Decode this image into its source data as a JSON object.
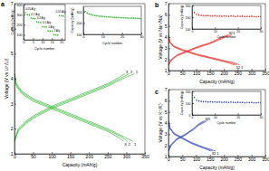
{
  "chart_data": [
    {
      "type": "line",
      "title": "a",
      "xlabel": "Capacity (mAh/g)",
      "ylabel": "Voltage (V vs Li⁺/Li)",
      "xlim": [
        0,
        350
      ],
      "xticks": [
        0,
        50,
        100,
        150,
        200,
        250,
        300,
        350
      ],
      "ylim": [
        1,
        7
      ],
      "yticks": [
        1,
        2,
        3,
        4,
        5,
        6,
        7
      ],
      "series": [
        {
          "name": "1",
          "color": "#3cb83c",
          "x": [
            0,
            5,
            20,
            50,
            100,
            150,
            200,
            250,
            290,
            318
          ],
          "values": [
            4.2,
            3.8,
            3.5,
            3.2,
            2.9,
            2.6,
            2.3,
            2.0,
            1.7,
            1.5
          ]
        },
        {
          "name": "2",
          "color": "#3cb83c",
          "x": [
            0,
            5,
            20,
            50,
            100,
            150,
            200,
            250,
            285,
            303
          ],
          "values": [
            4.2,
            3.75,
            3.45,
            3.15,
            2.85,
            2.55,
            2.25,
            1.95,
            1.7,
            1.5
          ]
        },
        {
          "name": "3",
          "color": "#3cb83c",
          "x": [
            0,
            5,
            20,
            50,
            100,
            150,
            200,
            250,
            280,
            292
          ],
          "values": [
            4.2,
            3.7,
            3.4,
            3.1,
            2.8,
            2.5,
            2.2,
            1.9,
            1.65,
            1.5
          ]
        },
        {
          "name": "1",
          "color": "#3cb83c",
          "x": [
            0,
            10,
            30,
            60,
            100,
            150,
            200,
            250,
            290,
            322
          ],
          "values": [
            1.5,
            1.9,
            2.2,
            2.5,
            2.8,
            3.1,
            3.4,
            3.7,
            4.0,
            4.2
          ]
        },
        {
          "name": "2",
          "color": "#3cb83c",
          "x": [
            0,
            10,
            30,
            60,
            100,
            150,
            200,
            250,
            285,
            308
          ],
          "values": [
            1.5,
            1.95,
            2.25,
            2.55,
            2.85,
            3.15,
            3.45,
            3.75,
            4.02,
            4.2
          ]
        },
        {
          "name": "3",
          "color": "#3cb83c",
          "x": [
            0,
            10,
            30,
            60,
            100,
            150,
            200,
            250,
            280,
            296
          ],
          "values": [
            1.5,
            2.0,
            2.3,
            2.6,
            2.9,
            3.2,
            3.5,
            3.8,
            4.05,
            4.2
          ]
        }
      ]
    },
    {
      "type": "scatter",
      "marker": "circle",
      "xlabel": "Cycle number",
      "ylabel": "Capacity (mAh/g)",
      "xlim": [
        0,
        22
      ],
      "xticks": [
        0,
        5,
        10,
        15,
        20
      ],
      "ylim": [
        50,
        400
      ],
      "yticks": [
        100,
        200,
        300,
        400
      ],
      "series": [
        {
          "color": "#3cb83c",
          "x": [
            1,
            2,
            3,
            4,
            5,
            6,
            7,
            8,
            9,
            10,
            11,
            12,
            13,
            14,
            15,
            16,
            17,
            18,
            19,
            20,
            21
          ],
          "values": [
            320,
            300,
            295,
            265,
            262,
            260,
            228,
            225,
            222,
            180,
            178,
            176,
            140,
            138,
            136,
            100,
            98,
            96,
            290,
            288,
            286
          ]
        }
      ],
      "annotations": [
        {
          "text": "0.05 A/g",
          "x": 1,
          "y": 350
        },
        {
          "text": "0.1 A/g",
          "x": 4,
          "y": 295
        },
        {
          "text": "0.2 A/g",
          "x": 7,
          "y": 258
        },
        {
          "text": "0.5 A/g",
          "x": 10,
          "y": 210
        },
        {
          "text": "1 A/g",
          "x": 13,
          "y": 170
        },
        {
          "text": "2 A/g",
          "x": 16,
          "y": 130
        },
        {
          "text": "0.05 A/g",
          "x": 17,
          "y": 320
        }
      ]
    },
    {
      "type": "scatter",
      "marker": "circle",
      "xlabel": "Cycle number",
      "ylabel": "Capacity (mAh/g)",
      "xlim": [
        0,
        30
      ],
      "xticks": [
        0,
        10,
        20,
        30
      ],
      "ylim": [
        100,
        350
      ],
      "yticks": [
        100,
        200,
        300
      ],
      "series": [
        {
          "color": "#3cb83c",
          "x": [
            1,
            2,
            3,
            4,
            5,
            6,
            7,
            8,
            9,
            10,
            11,
            12,
            13,
            14,
            15,
            16,
            17,
            18,
            19,
            20,
            21,
            22,
            23,
            24,
            25,
            26,
            27,
            28,
            29,
            30
          ],
          "values": [
            305,
            290,
            282,
            276,
            272,
            268,
            266,
            263,
            262,
            260,
            258,
            257,
            255,
            256,
            253,
            252,
            250,
            251,
            249,
            248,
            247,
            248,
            246,
            245,
            246,
            244,
            243,
            244,
            242,
            241
          ]
        }
      ]
    },
    {
      "type": "line",
      "title": "b",
      "xlabel": "Capacity (mAh/g)",
      "ylabel": "Voltage (V vs Na⁺/Na)",
      "xlim": [
        0,
        350
      ],
      "xticks": [
        0,
        50,
        100,
        150,
        200,
        250,
        300,
        350
      ],
      "ylim": [
        1,
        7
      ],
      "yticks": [
        1,
        2,
        3,
        4,
        5,
        6,
        7
      ],
      "series": [
        {
          "name": "1",
          "color": "#e53935",
          "x": [
            0,
            5,
            20,
            50,
            100,
            150,
            200,
            238,
            258
          ],
          "values": [
            4.2,
            3.6,
            3.2,
            2.9,
            2.5,
            2.2,
            1.9,
            1.7,
            1.5
          ]
        },
        {
          "name": "2",
          "color": "#e53935",
          "x": [
            0,
            5,
            20,
            50,
            100,
            150,
            200,
            228,
            248
          ],
          "values": [
            4.2,
            3.55,
            3.15,
            2.85,
            2.45,
            2.15,
            1.85,
            1.7,
            1.5
          ]
        },
        {
          "name": "3",
          "color": "#e53935",
          "x": [
            0,
            5,
            20,
            50,
            100,
            150,
            200,
            220,
            240
          ],
          "values": [
            4.2,
            3.5,
            3.1,
            2.8,
            2.4,
            2.1,
            1.8,
            1.65,
            1.5
          ]
        },
        {
          "name": "1",
          "color": "#e53935",
          "x": [
            0,
            10,
            30,
            60,
            100,
            150,
            198,
            228
          ],
          "values": [
            1.5,
            1.9,
            2.3,
            2.6,
            3.0,
            3.4,
            3.9,
            4.2
          ]
        },
        {
          "name": "2",
          "color": "#e53935",
          "x": [
            0,
            10,
            30,
            60,
            100,
            150,
            190,
            220
          ],
          "values": [
            1.5,
            1.95,
            2.35,
            2.65,
            3.05,
            3.45,
            3.9,
            4.2
          ]
        },
        {
          "name": "3",
          "color": "#e53935",
          "x": [
            0,
            10,
            30,
            60,
            100,
            150,
            184,
            214
          ],
          "values": [
            1.5,
            2.0,
            2.4,
            2.7,
            3.1,
            3.5,
            3.9,
            4.2
          ]
        }
      ]
    },
    {
      "type": "scatter",
      "marker": "circle",
      "xlabel": "Cycle number",
      "ylabel": "Capacity (mAh/g)",
      "xlim": [
        0,
        30
      ],
      "xticks": [
        0,
        10,
        20,
        30
      ],
      "ylim": [
        100,
        300
      ],
      "yticks": [
        100,
        200,
        300
      ],
      "series": [
        {
          "color": "#e53935",
          "x": [
            1,
            2,
            3,
            4,
            5,
            6,
            7,
            8,
            9,
            10,
            11,
            12,
            13,
            14,
            15,
            16,
            17,
            18,
            19,
            20,
            21,
            22,
            23,
            24,
            25,
            26,
            27,
            28,
            29,
            30
          ],
          "values": [
            240,
            225,
            218,
            215,
            213,
            212,
            214,
            211,
            210,
            212,
            209,
            210,
            208,
            211,
            209,
            207,
            210,
            208,
            206,
            209,
            207,
            208,
            205,
            207,
            206,
            208,
            205,
            204,
            206,
            205
          ]
        }
      ]
    },
    {
      "type": "line",
      "title": "c",
      "xlabel": "Capacity (mAh/g)",
      "ylabel": "Voltage (V vs K⁺/K)",
      "xlim": [
        0,
        350
      ],
      "xticks": [
        0,
        50,
        100,
        150,
        200,
        250,
        300,
        350
      ],
      "ylim": [
        1,
        7
      ],
      "yticks": [
        1,
        2,
        3,
        4,
        5,
        6,
        7
      ],
      "series": [
        {
          "name": "1",
          "color": "#3f51b5",
          "x": [
            0,
            5,
            20,
            50,
            80,
            110,
            130,
            170
          ],
          "values": [
            4.2,
            3.6,
            3.1,
            2.7,
            2.3,
            2.0,
            1.8,
            1.5
          ]
        },
        {
          "name": "2",
          "color": "#3f51b5",
          "x": [
            0,
            5,
            20,
            50,
            80,
            110,
            130,
            160
          ],
          "values": [
            4.2,
            3.55,
            3.05,
            2.65,
            2.25,
            1.95,
            1.78,
            1.5
          ]
        },
        {
          "name": "3",
          "color": "#3f51b5",
          "x": [
            0,
            5,
            20,
            50,
            80,
            110,
            130,
            152
          ],
          "values": [
            4.2,
            3.5,
            3.0,
            2.6,
            2.2,
            1.9,
            1.72,
            1.5
          ]
        },
        {
          "name": "1",
          "color": "#3f51b5",
          "x": [
            0,
            10,
            30,
            60,
            90,
            110,
            140
          ],
          "values": [
            1.5,
            2.0,
            2.5,
            2.9,
            3.4,
            3.8,
            4.2
          ]
        },
        {
          "name": "2",
          "color": "#3f51b5",
          "x": [
            0,
            10,
            30,
            60,
            90,
            108,
            134
          ],
          "values": [
            1.5,
            2.05,
            2.55,
            2.95,
            3.45,
            3.85,
            4.2
          ]
        },
        {
          "name": "3",
          "color": "#3f51b5",
          "x": [
            0,
            10,
            30,
            60,
            90,
            105,
            128
          ],
          "values": [
            1.5,
            2.1,
            2.6,
            3.0,
            3.5,
            3.85,
            4.2
          ]
        }
      ]
    },
    {
      "type": "scatter",
      "marker": "circle",
      "xlabel": "Cycle number",
      "ylabel": "Capacity (mAh/g)",
      "xlim": [
        0,
        30
      ],
      "xticks": [
        0,
        10,
        20,
        30
      ],
      "ylim": [
        0,
        200
      ],
      "yticks": [
        0,
        100,
        200
      ],
      "series": [
        {
          "color": "#3f51b5",
          "x": [
            1,
            2,
            3,
            4,
            5,
            6,
            7,
            8,
            9,
            10,
            11,
            12,
            13,
            14,
            15,
            16,
            17,
            18,
            19,
            20,
            21,
            22,
            23,
            24,
            25,
            26,
            27,
            28,
            29,
            30
          ],
          "values": [
            150,
            125,
            118,
            115,
            112,
            113,
            110,
            112,
            109,
            111,
            108,
            110,
            107,
            109,
            108,
            106,
            109,
            107,
            105,
            108,
            106,
            107,
            104,
            106,
            105,
            107,
            104,
            103,
            105,
            104
          ]
        }
      ]
    }
  ]
}
